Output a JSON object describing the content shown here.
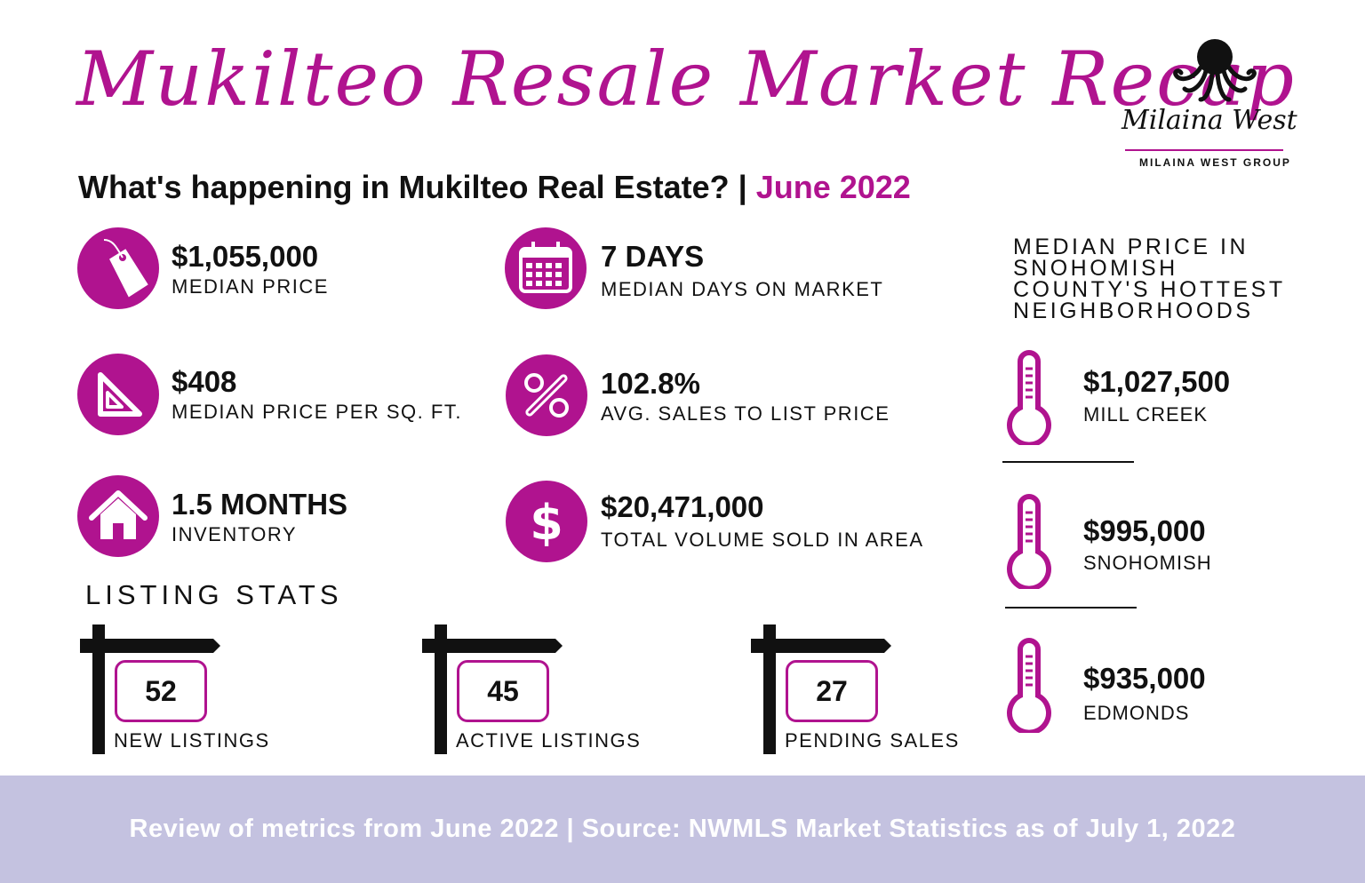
{
  "header": {
    "title": "Mukilteo Resale Market Recap",
    "subtitle_main": "What's happening in Mukilteo Real Estate? | ",
    "subtitle_date": "June 2022"
  },
  "logo": {
    "brand": "Milaina West",
    "group": "MILAINA WEST GROUP",
    "icon": "octopus-icon"
  },
  "stats": {
    "median_price": {
      "value": "$1,055,000",
      "label": "MEDIAN PRICE",
      "icon": "price-tag-icon"
    },
    "median_days": {
      "value": "7 DAYS",
      "label": "MEDIAN DAYS ON MARKET",
      "icon": "calendar-icon"
    },
    "price_per_sqft": {
      "value": "$408",
      "label": "MEDIAN PRICE PER SQ. FT.",
      "icon": "set-square-icon"
    },
    "sales_to_list": {
      "value": "102.8%",
      "label": "AVG. SALES TO LIST PRICE",
      "icon": "percent-icon"
    },
    "inventory": {
      "value": "1.5 MONTHS",
      "label": "INVENTORY",
      "icon": "house-icon"
    },
    "total_volume": {
      "value": "$20,471,000",
      "label": "TOTAL VOLUME SOLD IN AREA",
      "icon": "dollar-icon"
    }
  },
  "listing_stats": {
    "heading": "LISTING STATS",
    "items": [
      {
        "value": "52",
        "label": "NEW LISTINGS"
      },
      {
        "value": "45",
        "label": "ACTIVE LISTINGS"
      },
      {
        "value": "27",
        "label": "PENDING SALES"
      }
    ]
  },
  "hottest": {
    "heading_lines": [
      "MEDIAN PRICE IN",
      "SNOHOMISH",
      "COUNTY'S HOTTEST",
      "NEIGHBORHOODS"
    ],
    "items": [
      {
        "value": "$1,027,500",
        "label": "MILL CREEK"
      },
      {
        "value": "$995,000",
        "label": "SNOHOMISH"
      },
      {
        "value": "$935,000",
        "label": "EDMONDS"
      }
    ]
  },
  "footer": {
    "text": "Review of metrics from June 2022 | Source: NWMLS Market Statistics as of July 1, 2022"
  },
  "colors": {
    "accent": "#b0138f",
    "footer_bg": "#c4c2e0",
    "text": "#111111"
  }
}
